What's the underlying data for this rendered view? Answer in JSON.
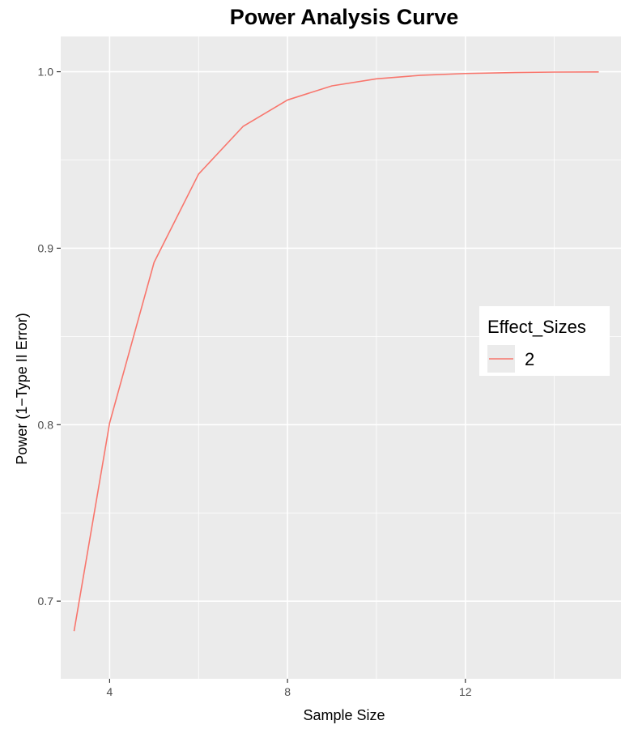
{
  "chart_data": {
    "type": "line",
    "title": "Power Analysis Curve",
    "xlabel": "Sample Size",
    "ylabel": "Power (1−Type II Error)",
    "xlim": [
      2.9,
      15.5
    ],
    "ylim": [
      0.656,
      1.02
    ],
    "x_ticks": [
      4,
      8,
      12
    ],
    "x_tick_labels": [
      "4",
      "8",
      "12"
    ],
    "x_minor_ticks": [
      6,
      10,
      14
    ],
    "y_ticks": [
      0.7,
      0.8,
      0.9,
      1.0
    ],
    "y_tick_labels": [
      "0.7",
      "0.8",
      "0.9",
      "1.0"
    ],
    "y_minor_ticks": [
      0.65,
      0.75,
      0.85,
      0.95
    ],
    "grid": true,
    "legend": {
      "title": "Effect_Sizes",
      "position": "right"
    },
    "series": [
      {
        "name": "2",
        "color": "#f8766d",
        "x": [
          3.2,
          4,
          5,
          6,
          7,
          8,
          9,
          10,
          11,
          12,
          13,
          14,
          15
        ],
        "y": [
          0.683,
          0.801,
          0.892,
          0.942,
          0.969,
          0.984,
          0.992,
          0.996,
          0.998,
          0.999,
          0.9995,
          0.9998,
          0.9999
        ]
      }
    ]
  }
}
